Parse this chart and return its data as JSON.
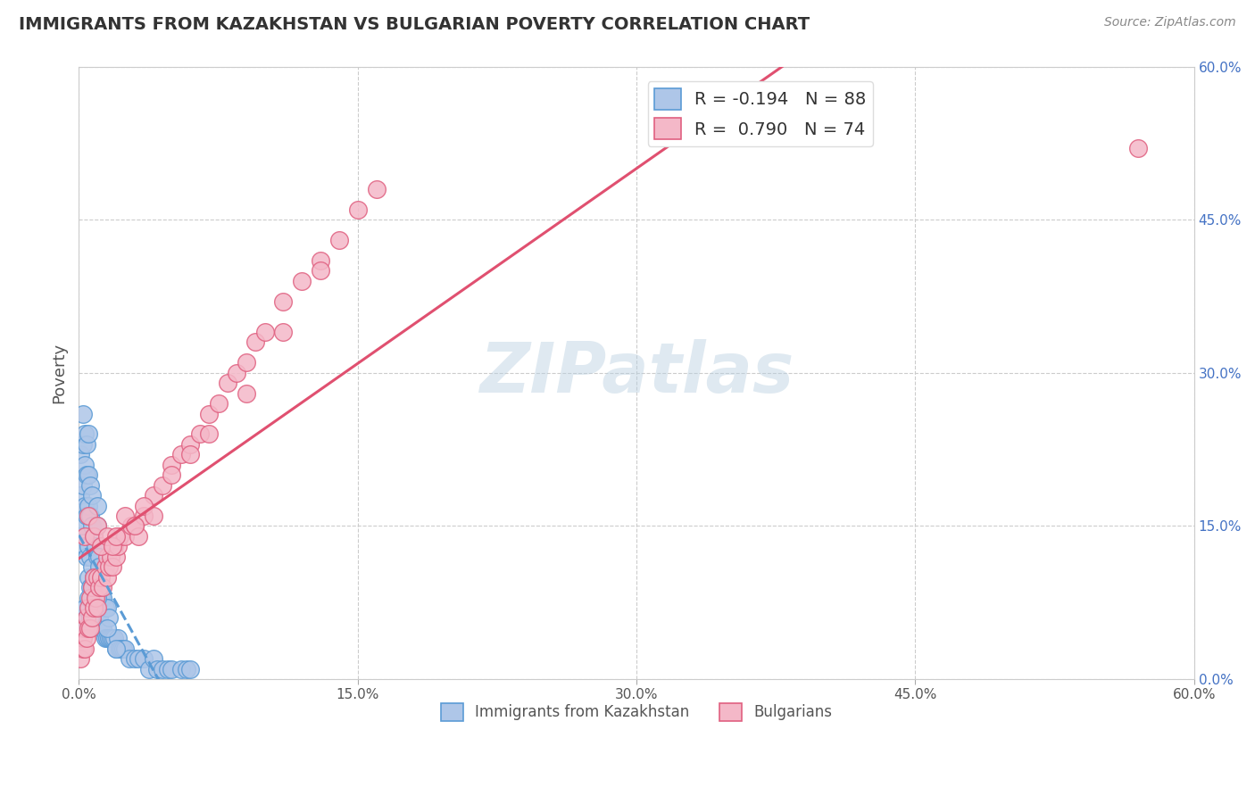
{
  "title": "IMMIGRANTS FROM KAZAKHSTAN VS BULGARIAN POVERTY CORRELATION CHART",
  "source": "Source: ZipAtlas.com",
  "ylabel": "Poverty",
  "watermark": "ZIPatlas",
  "xlim": [
    0.0,
    0.6
  ],
  "ylim": [
    0.0,
    0.6
  ],
  "xticks": [
    0.0,
    0.15,
    0.3,
    0.45,
    0.6
  ],
  "yticks": [
    0.0,
    0.15,
    0.3,
    0.45,
    0.6
  ],
  "xtick_labels": [
    "0.0%",
    "15.0%",
    "30.0%",
    "45.0%",
    "60.0%"
  ],
  "ytick_labels_right": [
    "0.0%",
    "15.0%",
    "30.0%",
    "45.0%",
    "60.0%"
  ],
  "blue": {
    "name": "Immigrants from Kazakhstan",
    "R": -0.194,
    "N": 88,
    "color": "#aec6e8",
    "edge_color": "#5b9bd5",
    "trend_color": "#5b9bd5",
    "trend_style": "--",
    "x": [
      0.001,
      0.001,
      0.001,
      0.002,
      0.002,
      0.002,
      0.002,
      0.003,
      0.003,
      0.003,
      0.003,
      0.004,
      0.004,
      0.004,
      0.004,
      0.005,
      0.005,
      0.005,
      0.005,
      0.005,
      0.006,
      0.006,
      0.006,
      0.006,
      0.007,
      0.007,
      0.007,
      0.007,
      0.008,
      0.008,
      0.008,
      0.009,
      0.009,
      0.009,
      0.01,
      0.01,
      0.01,
      0.01,
      0.01,
      0.011,
      0.011,
      0.011,
      0.012,
      0.012,
      0.013,
      0.013,
      0.014,
      0.014,
      0.015,
      0.015,
      0.016,
      0.016,
      0.017,
      0.018,
      0.019,
      0.02,
      0.021,
      0.022,
      0.023,
      0.024,
      0.025,
      0.027,
      0.03,
      0.032,
      0.035,
      0.038,
      0.04,
      0.042,
      0.045,
      0.048,
      0.05,
      0.055,
      0.058,
      0.06,
      0.001,
      0.002,
      0.003,
      0.004,
      0.005,
      0.006,
      0.007,
      0.008,
      0.009,
      0.01,
      0.011,
      0.012,
      0.015,
      0.02
    ],
    "y": [
      0.14,
      0.18,
      0.22,
      0.15,
      0.19,
      0.23,
      0.26,
      0.13,
      0.17,
      0.21,
      0.24,
      0.12,
      0.16,
      0.2,
      0.23,
      0.1,
      0.13,
      0.17,
      0.2,
      0.24,
      0.09,
      0.12,
      0.16,
      0.19,
      0.08,
      0.11,
      0.15,
      0.18,
      0.07,
      0.1,
      0.14,
      0.07,
      0.1,
      0.13,
      0.06,
      0.09,
      0.12,
      0.15,
      0.17,
      0.06,
      0.09,
      0.12,
      0.05,
      0.08,
      0.05,
      0.08,
      0.04,
      0.07,
      0.04,
      0.07,
      0.04,
      0.06,
      0.04,
      0.04,
      0.04,
      0.03,
      0.04,
      0.03,
      0.03,
      0.03,
      0.03,
      0.02,
      0.02,
      0.02,
      0.02,
      0.01,
      0.02,
      0.01,
      0.01,
      0.01,
      0.01,
      0.01,
      0.01,
      0.01,
      0.05,
      0.06,
      0.07,
      0.05,
      0.08,
      0.06,
      0.09,
      0.07,
      0.1,
      0.08,
      0.11,
      0.09,
      0.05,
      0.03
    ]
  },
  "pink": {
    "name": "Bulgarians",
    "R": 0.79,
    "N": 74,
    "color": "#f4b8c8",
    "edge_color": "#e06080",
    "trend_color": "#e05070",
    "trend_style": "-",
    "x": [
      0.001,
      0.002,
      0.002,
      0.003,
      0.003,
      0.004,
      0.004,
      0.005,
      0.005,
      0.006,
      0.006,
      0.007,
      0.007,
      0.008,
      0.008,
      0.009,
      0.01,
      0.01,
      0.011,
      0.012,
      0.013,
      0.014,
      0.015,
      0.015,
      0.016,
      0.017,
      0.018,
      0.019,
      0.02,
      0.021,
      0.022,
      0.025,
      0.028,
      0.03,
      0.032,
      0.035,
      0.04,
      0.045,
      0.05,
      0.055,
      0.06,
      0.065,
      0.07,
      0.075,
      0.08,
      0.085,
      0.09,
      0.095,
      0.1,
      0.11,
      0.12,
      0.13,
      0.14,
      0.15,
      0.16,
      0.003,
      0.005,
      0.008,
      0.01,
      0.012,
      0.015,
      0.018,
      0.02,
      0.025,
      0.03,
      0.035,
      0.04,
      0.05,
      0.06,
      0.07,
      0.09,
      0.11,
      0.13,
      0.57
    ],
    "y": [
      0.02,
      0.03,
      0.04,
      0.03,
      0.05,
      0.04,
      0.06,
      0.05,
      0.07,
      0.05,
      0.08,
      0.06,
      0.09,
      0.07,
      0.1,
      0.08,
      0.07,
      0.1,
      0.09,
      0.1,
      0.09,
      0.11,
      0.1,
      0.12,
      0.11,
      0.12,
      0.11,
      0.13,
      0.12,
      0.13,
      0.14,
      0.14,
      0.15,
      0.15,
      0.14,
      0.16,
      0.18,
      0.19,
      0.21,
      0.22,
      0.23,
      0.24,
      0.26,
      0.27,
      0.29,
      0.3,
      0.31,
      0.33,
      0.34,
      0.37,
      0.39,
      0.41,
      0.43,
      0.46,
      0.48,
      0.14,
      0.16,
      0.14,
      0.15,
      0.13,
      0.14,
      0.13,
      0.14,
      0.16,
      0.15,
      0.17,
      0.16,
      0.2,
      0.22,
      0.24,
      0.28,
      0.34,
      0.4,
      0.52
    ]
  },
  "legend": {
    "blue_label": "R = -0.194   N = 88",
    "pink_label": "R =  0.790   N = 74",
    "blue_color": "#aec6e8",
    "pink_color": "#f4b8c8"
  },
  "bottom_legend": [
    "Immigrants from Kazakhstan",
    "Bulgarians"
  ],
  "grid_color": "#cccccc",
  "background_color": "#ffffff",
  "title_color": "#333333",
  "axis_label_color": "#555555",
  "right_tick_color": "#4472c4"
}
